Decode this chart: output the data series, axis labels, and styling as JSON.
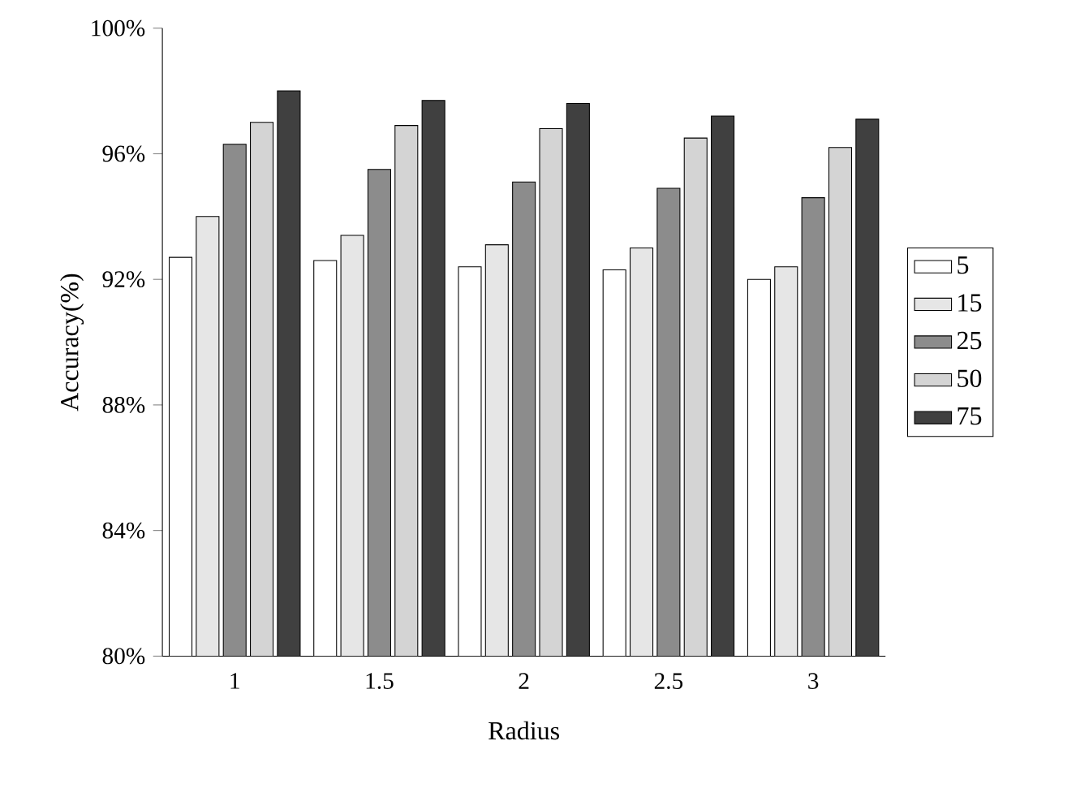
{
  "chart_data": {
    "type": "bar",
    "xlabel": "Radius",
    "ylabel": "Accuracy(%)",
    "categories": [
      "1",
      "1.5",
      "2",
      "2.5",
      "3"
    ],
    "series": [
      {
        "name": "5",
        "color": "#ffffff",
        "values": [
          92.7,
          92.6,
          92.4,
          92.3,
          92.0
        ]
      },
      {
        "name": "15",
        "color": "#e6e6e6",
        "values": [
          94.0,
          93.4,
          93.1,
          93.0,
          92.4
        ]
      },
      {
        "name": "25",
        "color": "#8c8c8c",
        "values": [
          96.3,
          95.5,
          95.1,
          94.9,
          94.6
        ]
      },
      {
        "name": "50",
        "color": "#d4d4d4",
        "values": [
          97.0,
          96.9,
          96.8,
          96.5,
          96.2
        ]
      },
      {
        "name": "75",
        "color": "#404040",
        "values": [
          98.0,
          97.7,
          97.6,
          97.2,
          97.1
        ]
      }
    ],
    "ylim": [
      80,
      100
    ],
    "yticks": [
      {
        "value": 80,
        "label": "80%"
      },
      {
        "value": 84,
        "label": "84%"
      },
      {
        "value": 88,
        "label": "88%"
      },
      {
        "value": 92,
        "label": "92%"
      },
      {
        "value": 96,
        "label": "96%"
      },
      {
        "value": 100,
        "label": "100%"
      }
    ],
    "grid": false,
    "legend": "right"
  }
}
